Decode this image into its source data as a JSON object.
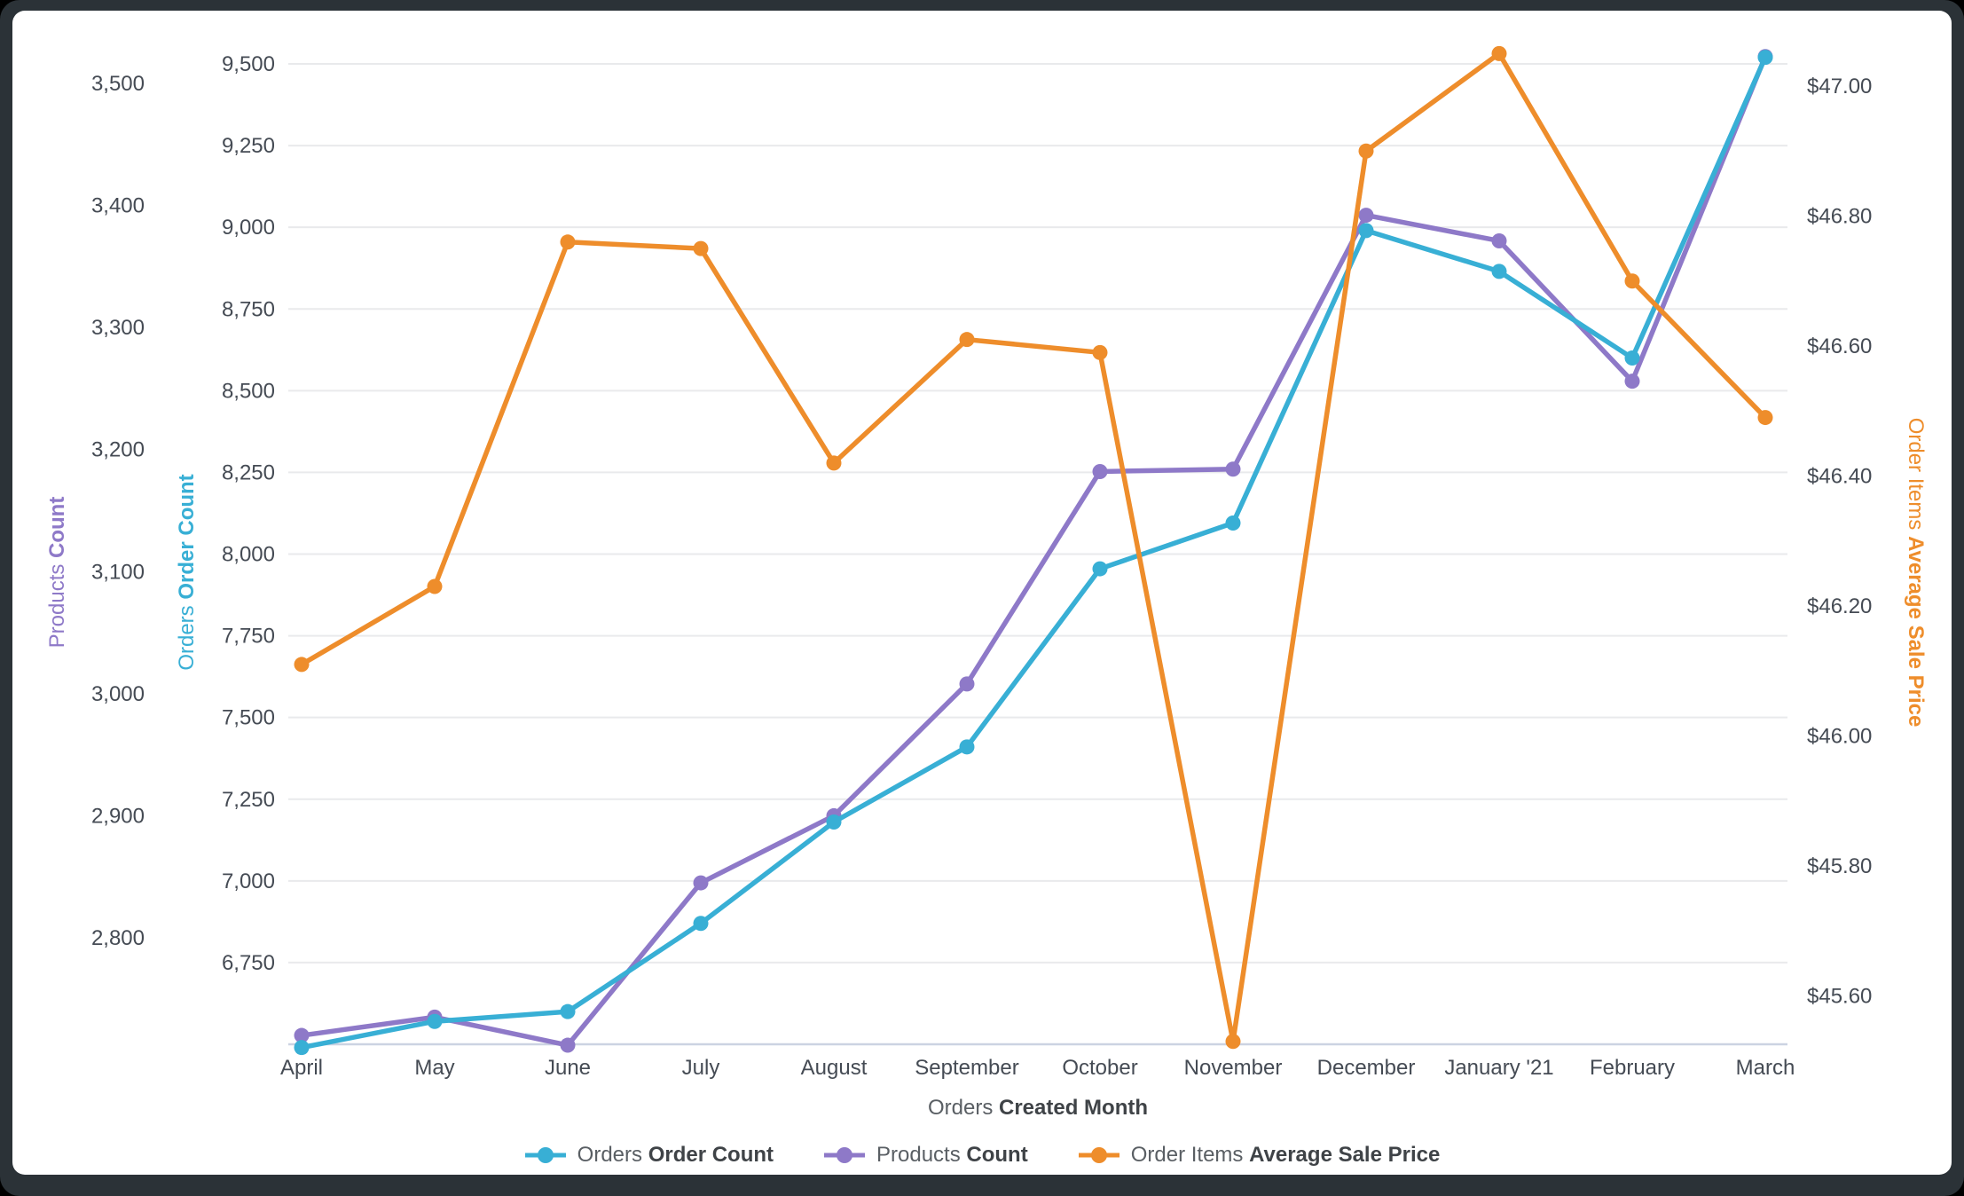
{
  "chart_data": {
    "type": "line",
    "title": "",
    "x_axis": {
      "title_prefix": "Orders",
      "title_bold": "Created Month"
    },
    "categories": [
      "April",
      "May",
      "June",
      "July",
      "August",
      "September",
      "October",
      "November",
      "December",
      "January '21",
      "February",
      "March"
    ],
    "series": [
      {
        "name_prefix": "Orders",
        "name_bold": "Order Count",
        "axis": "orders",
        "color": "#38afd5",
        "z": 1,
        "values": [
          6490,
          6570,
          6600,
          6870,
          7180,
          7410,
          7955,
          8095,
          8990,
          8865,
          8600,
          9520
        ]
      },
      {
        "name_prefix": "Products",
        "name_bold": "Count",
        "axis": "products",
        "color": "#8e79c8",
        "z": 0,
        "values": [
          2720,
          2735,
          2712,
          2845,
          2900,
          3008,
          3182,
          3184,
          3392,
          3371,
          3256,
          3522
        ]
      },
      {
        "name_prefix": "Order Items",
        "name_bold": "Average Sale Price",
        "axis": "price",
        "color": "#ee8d2b",
        "z": 2,
        "values": [
          46.11,
          46.23,
          46.76,
          46.75,
          46.42,
          46.61,
          46.59,
          45.53,
          46.9,
          47.05,
          46.7,
          46.49
        ]
      }
    ],
    "axes": {
      "products": {
        "title_prefix": "Products",
        "title_bold": "Count",
        "color": "#8e79c8",
        "ticks": [
          "3,500",
          "3,400",
          "3,300",
          "3,200",
          "3,100",
          "3,000",
          "2,900",
          "2,800"
        ],
        "range": [
          2712,
          3500
        ]
      },
      "orders": {
        "title_prefix": "Orders",
        "title_bold": "Order Count",
        "color": "#38afd5",
        "ticks": [
          "9,500",
          "9,250",
          "9,000",
          "8,750",
          "8,500",
          "8,250",
          "8,000",
          "7,750",
          "7,500",
          "7,250",
          "7,000",
          "6,750"
        ],
        "range": [
          6500,
          9500
        ]
      },
      "price": {
        "title_prefix": "Order Items",
        "title_bold": "Average Sale Price",
        "color": "#ee8d2b",
        "ticks": [
          "$47.00",
          "$46.80",
          "$46.60",
          "$46.40",
          "$46.20",
          "$46.00",
          "$45.80",
          "$45.60"
        ],
        "range": [
          45.53,
          47.05
        ]
      }
    },
    "grid": "horizontal",
    "legend_position": "bottom"
  },
  "colors": {
    "tick_text": "#454b54",
    "gridline": "#e9eaec",
    "axis_line": "#ccd3e2",
    "label_regular": "#5a5f64",
    "label_bold": "#3f4347"
  }
}
